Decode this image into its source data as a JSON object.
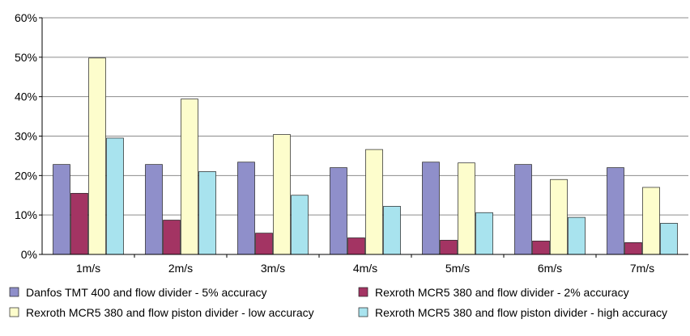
{
  "chart_data": {
    "type": "bar",
    "title": "",
    "xlabel": "",
    "ylabel": "",
    "categories": [
      "1m/s",
      "2m/s",
      "3m/s",
      "4m/s",
      "5m/s",
      "6m/s",
      "7m/s"
    ],
    "ylim": [
      0,
      60
    ],
    "yticks": [
      "0%",
      "10%",
      "20%",
      "30%",
      "40%",
      "50%",
      "60%"
    ],
    "grid": true,
    "legend_position": "bottom",
    "series": [
      {
        "name": "Danfos TMT 400 and flow divider - 5% accuracy",
        "color": "#8f8fca",
        "values": [
          22.8,
          22.8,
          23.4,
          22.0,
          23.4,
          22.8,
          22.0
        ]
      },
      {
        "name": "Rexroth MCR5 380 and flow divider - 2% accuracy",
        "color": "#a33463",
        "values": [
          15.5,
          8.7,
          5.4,
          4.2,
          3.6,
          3.4,
          3.0
        ]
      },
      {
        "name": "Rexroth MCR5 380 and flow piston divider - low accuracy",
        "color": "#fdfdcc",
        "values": [
          49.8,
          39.4,
          30.4,
          26.6,
          23.2,
          19.0,
          17.0
        ]
      },
      {
        "name": "Rexroth MCR5 380 and flow piston divider - high accuracy",
        "color": "#a8e3ee",
        "values": [
          29.5,
          21.0,
          15.0,
          12.2,
          10.6,
          9.4,
          7.9
        ]
      }
    ]
  }
}
